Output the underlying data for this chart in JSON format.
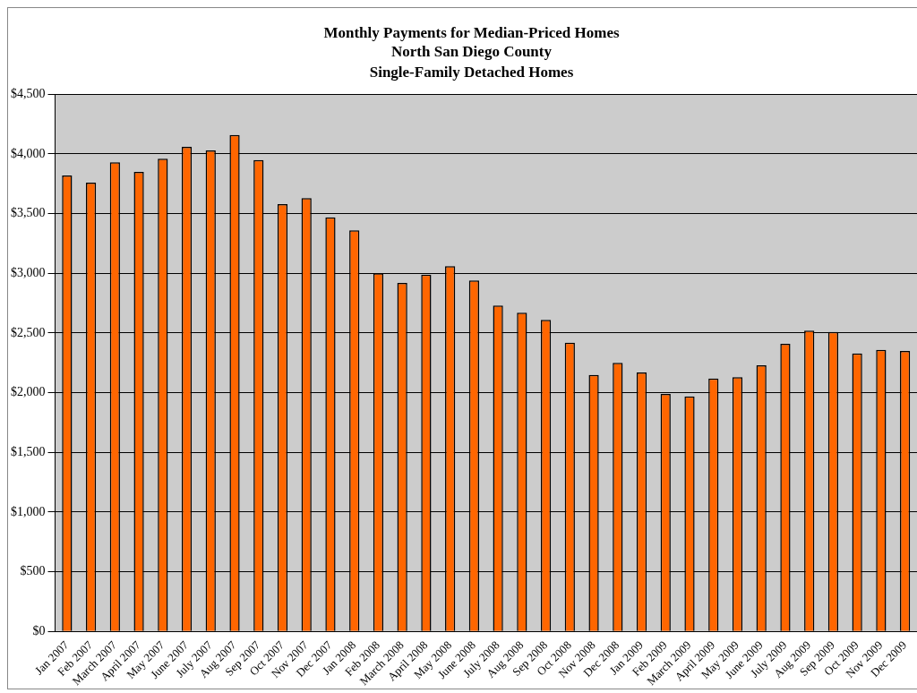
{
  "chart_data": {
    "type": "bar",
    "title": "Monthly Payments for Median-Priced Homes",
    "subtitle": "North San Diego County\nSingle-Family Detached Homes",
    "categories": [
      "Jan 2007",
      "Feb 2007",
      "March 2007",
      "April 2007",
      "May 2007",
      "June 2007",
      "July 2007",
      "Aug 2007",
      "Sep 2007",
      "Oct 2007",
      "Nov 2007",
      "Dec 2007",
      "Jan 2008",
      "Feb 2008",
      "March 2008",
      "April 2008",
      "May 2008",
      "June 2008",
      "July 2008",
      "Aug 2008",
      "Sep 2008",
      "Oct 2008",
      "Nov 2008",
      "Dec 2008",
      "Jan 2009",
      "Feb 2009",
      "March 2009",
      "April 2009",
      "May 2009",
      "June 2009",
      "July 2009",
      "Aug 2009",
      "Sep 2009",
      "Oct 2009",
      "Nov 2009",
      "Dec 2009"
    ],
    "values": [
      3820,
      3760,
      3930,
      3850,
      3960,
      4060,
      4030,
      4160,
      3950,
      3580,
      3630,
      3470,
      3360,
      3000,
      2920,
      2990,
      3060,
      2940,
      2730,
      2670,
      2610,
      2420,
      2150,
      2250,
      2170,
      1990,
      1970,
      2120,
      2130,
      2230,
      2410,
      2520,
      2510,
      2330,
      2360,
      2350
    ],
    "color": "#ff6600",
    "ylim": [
      0,
      4500
    ],
    "yticks": [
      {
        "value": 0,
        "label": "$0"
      },
      {
        "value": 500,
        "label": "$500"
      },
      {
        "value": 1000,
        "label": "$1,000"
      },
      {
        "value": 1500,
        "label": "$1,500"
      },
      {
        "value": 2000,
        "label": "$2,000"
      },
      {
        "value": 2500,
        "label": "$2,500"
      },
      {
        "value": 3000,
        "label": "$3,000"
      },
      {
        "value": 3500,
        "label": "$3,500"
      },
      {
        "value": 4000,
        "label": "$4,000"
      },
      {
        "value": 4500,
        "label": "$4,500"
      }
    ],
    "grid": "y",
    "legend": false
  }
}
